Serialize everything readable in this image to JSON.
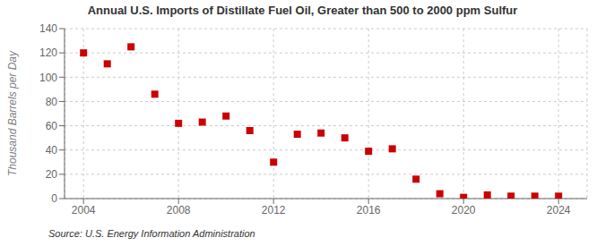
{
  "chart_data": {
    "type": "scatter",
    "title": "Annual U.S. Imports of Distillate Fuel Oil, Greater than 500 to 2000 ppm Sulfur",
    "y_label": "Thousand Barrels per Day",
    "annotations": [
      "Source: U.S. Energy Information Administration"
    ],
    "x": [
      2004,
      2005,
      2006,
      2007,
      2008,
      2009,
      2010,
      2011,
      2012,
      2013,
      2014,
      2015,
      2016,
      2017,
      2018,
      2019,
      2020,
      2021,
      2022,
      2023,
      2024
    ],
    "values": [
      120,
      111,
      125,
      86,
      62,
      63,
      68,
      56,
      30,
      53,
      54,
      50,
      39,
      41,
      16,
      4,
      1,
      3,
      2,
      2,
      2
    ],
    "color": "#cc0000",
    "marker": "square",
    "grid": true,
    "xlim": [
      2003.2,
      2025.2
    ],
    "xticks": [
      2004,
      2008,
      2012,
      2016,
      2020,
      2024
    ],
    "ylim": [
      0,
      140
    ],
    "yticks": [
      0,
      20,
      40,
      60,
      80,
      100,
      120,
      140
    ]
  }
}
